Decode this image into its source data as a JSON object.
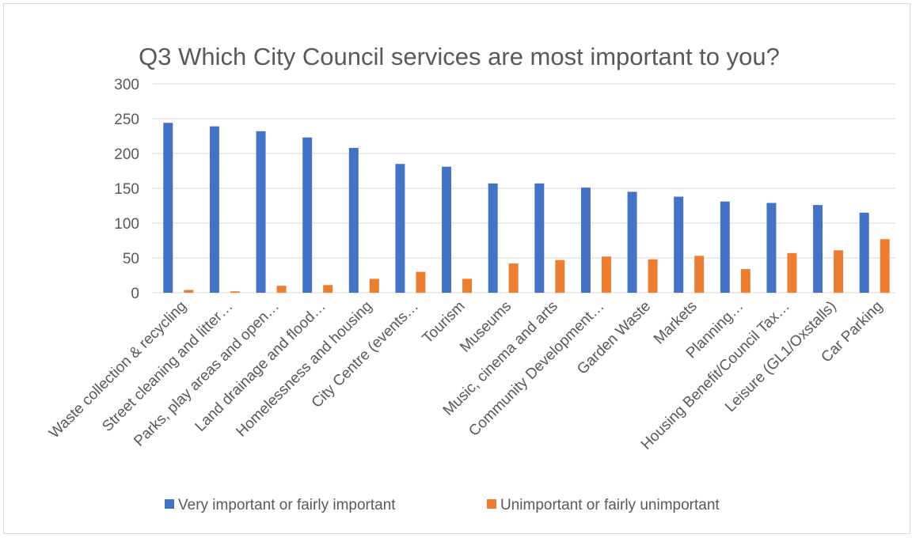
{
  "chart_data": {
    "type": "bar",
    "title": "Q3 Which City Council services are most important to you?",
    "xlabel": "",
    "ylabel": "",
    "ylim": [
      0,
      300
    ],
    "yticks": [
      0,
      50,
      100,
      150,
      200,
      250,
      300
    ],
    "grid": true,
    "legend_position": "bottom",
    "categories": [
      "Waste collection & recycling",
      "Street cleaning and litter…",
      "Parks, play areas and open…",
      "Land drainage and flood…",
      "Homelessness and housing",
      "City Centre (events…",
      "Tourism",
      "Museums",
      "Music, cinema and arts",
      "Community Development…",
      "Garden Waste",
      "Markets",
      "Planning…",
      "Housing Benefit/Council Tax…",
      "Leisure (GL1/Oxstalls)",
      "Car Parking"
    ],
    "series": [
      {
        "name": "Very important or fairly important",
        "color": "#4472c4",
        "values": [
          244,
          239,
          232,
          223,
          208,
          185,
          181,
          157,
          157,
          151,
          145,
          138,
          131,
          129,
          126,
          115
        ]
      },
      {
        "name": "Unimportant or fairly unimportant",
        "color": "#ed7d31",
        "values": [
          4,
          2,
          10,
          11,
          20,
          30,
          20,
          42,
          47,
          52,
          48,
          53,
          34,
          57,
          61,
          77
        ]
      }
    ]
  },
  "colors": {
    "grid": "#d9d9d9",
    "axis_text": "#595959",
    "title_text": "#595959"
  }
}
